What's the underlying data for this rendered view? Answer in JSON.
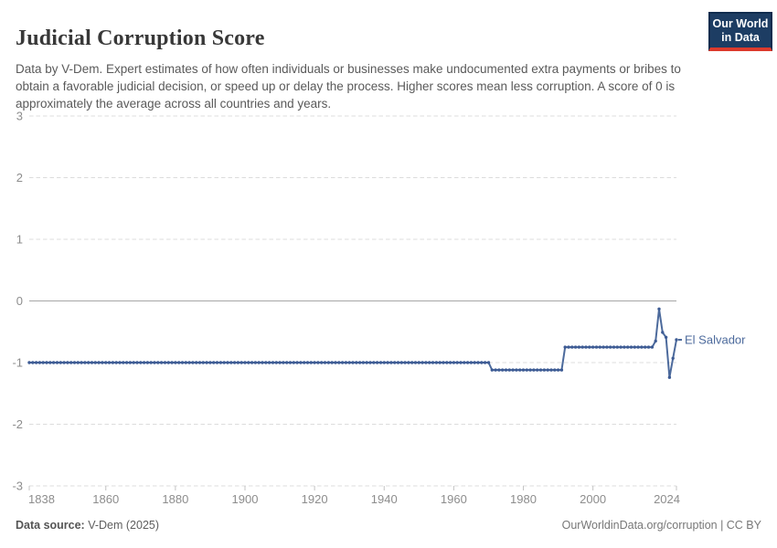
{
  "header": {
    "title": "Judicial Corruption Score",
    "subtitle": "Data by V-Dem. Expert estimates of how often individuals or businesses make undocumented extra payments or bribes to obtain a favorable judicial decision, or speed up or delay the process. Higher scores mean less corruption. A score of 0 is approximately the average across all countries and years.",
    "logo": {
      "line1": "Our World",
      "line2": "in Data",
      "bg_color": "#1d3d63",
      "accent_color": "#dc3a2c"
    }
  },
  "chart_data": {
    "type": "line",
    "title": "Judicial Corruption Score",
    "xlabel": "",
    "ylabel": "",
    "xlim": [
      1838,
      2024
    ],
    "ylim": [
      -3,
      3
    ],
    "xticks": [
      1838,
      1860,
      1880,
      1900,
      1920,
      1940,
      1960,
      1980,
      2000,
      2024
    ],
    "yticks": [
      3,
      2,
      1,
      0,
      -1,
      -2,
      -3
    ],
    "grid": "horizontal dashed gridlines, solid zero line, x tick marks at bottom",
    "legend_position": "label at end of line",
    "series": [
      {
        "name": "El Salvador",
        "color": "#4c6a9c",
        "marker_color": "#3d5b94",
        "segments": [
          {
            "start_year": 1838,
            "end_year": 1970,
            "value": -1.0
          },
          {
            "start_year": 1971,
            "end_year": 1991,
            "value": -1.12
          },
          {
            "start_year": 1992,
            "end_year": 2017,
            "value": -0.75
          }
        ],
        "recent_points": [
          [
            2018,
            -0.65
          ],
          [
            2019,
            -0.13
          ],
          [
            2020,
            -0.51
          ],
          [
            2021,
            -0.59
          ],
          [
            2022,
            -1.24
          ],
          [
            2023,
            -0.93
          ],
          [
            2024,
            -0.63
          ]
        ]
      }
    ]
  },
  "footer": {
    "source_label": "Data source:",
    "source_value": " V-Dem (2025)",
    "credit": "OurWorldinData.org/corruption | CC BY"
  }
}
